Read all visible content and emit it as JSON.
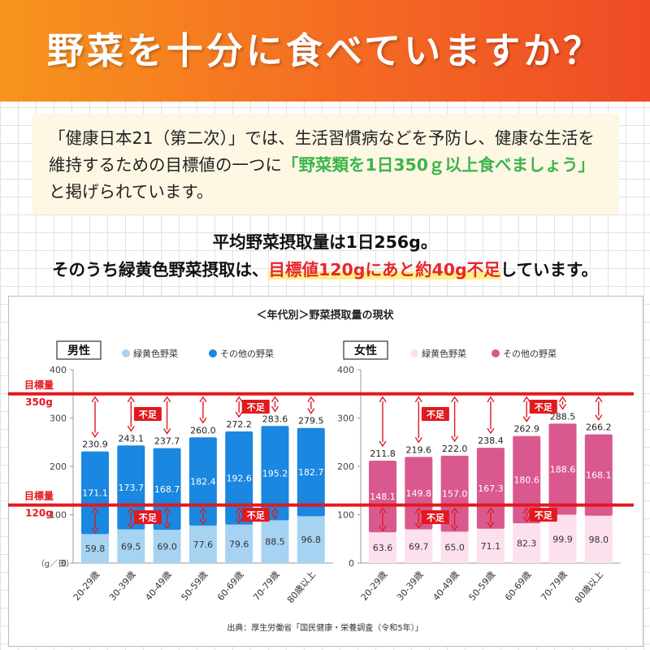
{
  "header": {
    "title": "野菜を十分に食べていますか？"
  },
  "note": {
    "before": "「健康日本21（第二次）」では、生活習慣病などを予防し、健康な生活を維持するための目標値の一つに",
    "highlight": "「野菜類を1日350ｇ以上食べましょう」",
    "after": "と掲げられています。"
  },
  "summary": {
    "line1": "平均野菜摂取量は1日256g。",
    "line2_before": "そのうち緑黄色野菜摂取は、",
    "line2_highlight": "目標値120gにあと約40g不足",
    "line2_after": "しています。"
  },
  "colors": {
    "male_green": "#a7d3f3",
    "male_other": "#1a87e0",
    "female_green": "#fde0ee",
    "female_other": "#d9598f",
    "target_line": "#e2191f"
  },
  "chart_data": {
    "type": "bar",
    "title": "＜年代別＞野菜摂取量の現状",
    "unit_label": "（g／日）",
    "source": "出典：厚生労働省「国民健康・栄養調査（令和5年）」",
    "ylim": [
      0,
      400
    ],
    "yticks": [
      "0",
      "100",
      "200",
      "300",
      "400"
    ],
    "categories": [
      "20-29歳",
      "30-39歳",
      "40-49歳",
      "50-59歳",
      "60-69歳",
      "70-79歳",
      "80歳以上"
    ],
    "targets": [
      {
        "label": "目標量",
        "value_label": "350g",
        "value": 350
      },
      {
        "label": "目標量",
        "value_label": "120g",
        "value": 120
      }
    ],
    "shortfall_label": "不足",
    "panels": [
      {
        "name": "男性",
        "series": [
          {
            "name": "緑黄色野菜",
            "values": [
              59.8,
              69.5,
              69.0,
              77.6,
              79.6,
              88.5,
              96.8
            ]
          },
          {
            "name": "その他の野菜",
            "values": [
              171.1,
              173.7,
              168.7,
              182.4,
              192.6,
              195.2,
              182.7
            ]
          }
        ],
        "totals": [
          230.9,
          243.1,
          237.7,
          260.0,
          272.2,
          283.6,
          279.5
        ]
      },
      {
        "name": "女性",
        "series": [
          {
            "name": "緑黄色野菜",
            "values": [
              63.6,
              69.7,
              65.0,
              71.1,
              82.3,
              99.9,
              98.0
            ]
          },
          {
            "name": "その他の野菜",
            "values": [
              148.1,
              149.8,
              157.0,
              167.3,
              180.6,
              188.6,
              168.1
            ]
          }
        ],
        "totals": [
          211.8,
          219.6,
          222.0,
          238.4,
          262.9,
          288.5,
          266.2
        ]
      }
    ]
  }
}
